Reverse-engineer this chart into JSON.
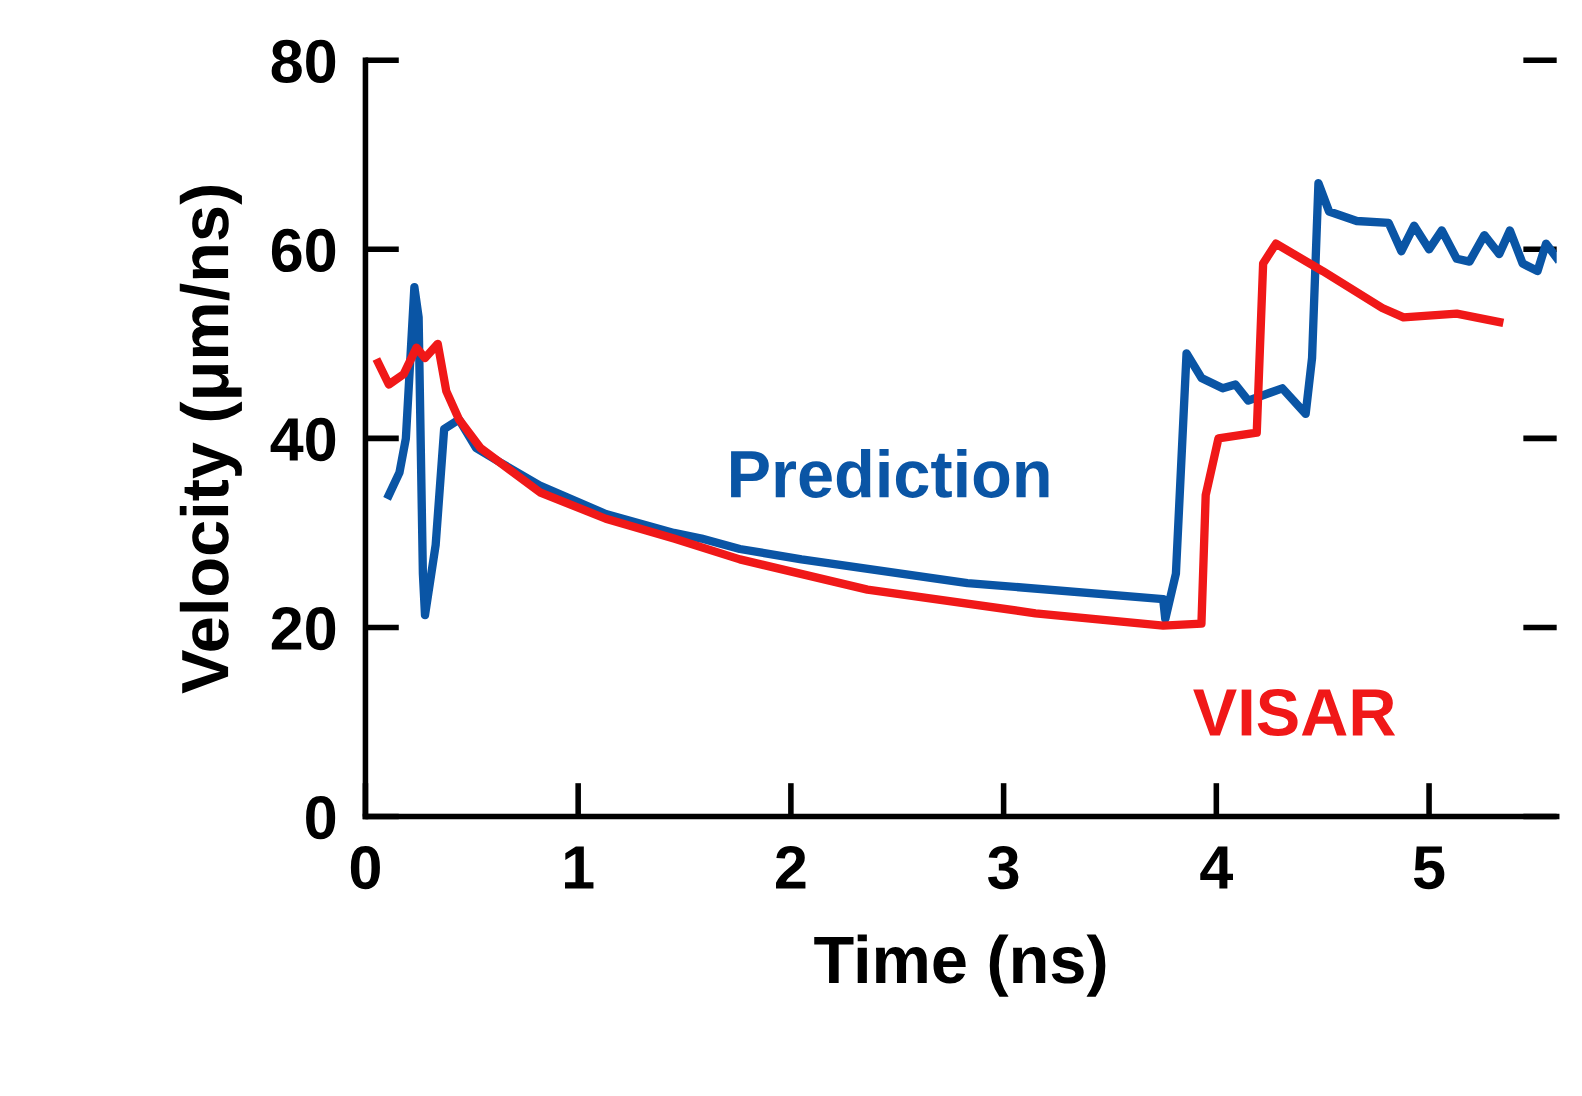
{
  "chart_data": {
    "type": "line",
    "xlabel": "Time (ns)",
    "ylabel": "Velocity (μm/ns)",
    "xlim": [
      0,
      5.6
    ],
    "ylim": [
      0,
      80
    ],
    "xticks": [
      0,
      1,
      2,
      3,
      4,
      5
    ],
    "yticks": [
      0,
      20,
      40,
      60,
      80
    ],
    "grid": false,
    "legend": false,
    "marker": "none",
    "line_style": "solid",
    "series": [
      {
        "name": "Prediction",
        "color": "#0a55a5",
        "x": [
          0.11,
          0.16,
          0.19,
          0.23,
          0.25,
          0.27,
          0.28,
          0.33,
          0.37,
          0.44,
          0.52,
          0.63,
          0.82,
          1.13,
          1.45,
          1.58,
          1.76,
          2.05,
          2.83,
          3.75,
          3.76,
          3.81,
          3.86,
          3.93,
          4.03,
          4.09,
          4.15,
          4.31,
          4.42,
          4.45,
          4.48,
          4.53,
          4.66,
          4.81,
          4.87,
          4.93,
          5.0,
          5.06,
          5.13,
          5.19,
          5.26,
          5.33,
          5.38,
          5.44,
          5.51,
          5.55,
          5.6
        ],
        "values": [
          34,
          36.4,
          40,
          56,
          52.8,
          25.7,
          21.3,
          28.7,
          41,
          42,
          39,
          37.5,
          35,
          32,
          30,
          29.4,
          28.3,
          27.2,
          24.7,
          23,
          20.9,
          25.7,
          49,
          46.4,
          45.3,
          45.7,
          44,
          45.3,
          42.6,
          48.5,
          67,
          64,
          63,
          62.8,
          59.8,
          62.5,
          60,
          62,
          59,
          58.7,
          61.5,
          59.5,
          62,
          58.5,
          57.7,
          60.6,
          59.1
        ]
      },
      {
        "name": "VISAR",
        "color": "#f01818",
        "x": [
          0.06,
          0.11,
          0.18,
          0.24,
          0.28,
          0.34,
          0.38,
          0.44,
          0.54,
          0.82,
          1.13,
          1.45,
          1.76,
          2.36,
          3.15,
          3.75,
          3.93,
          3.95,
          4.01,
          4.19,
          4.22,
          4.28,
          4.5,
          4.78,
          4.88,
          5.13,
          5.33
        ],
        "values": [
          48,
          45.7,
          46.8,
          49.6,
          48.5,
          50,
          45,
          42,
          39,
          34.3,
          31.5,
          29.4,
          27.2,
          24,
          21.5,
          20.2,
          20.4,
          34,
          40,
          40.6,
          58.5,
          60.6,
          57.7,
          53.8,
          52.8,
          53.2,
          52.3
        ]
      }
    ]
  }
}
